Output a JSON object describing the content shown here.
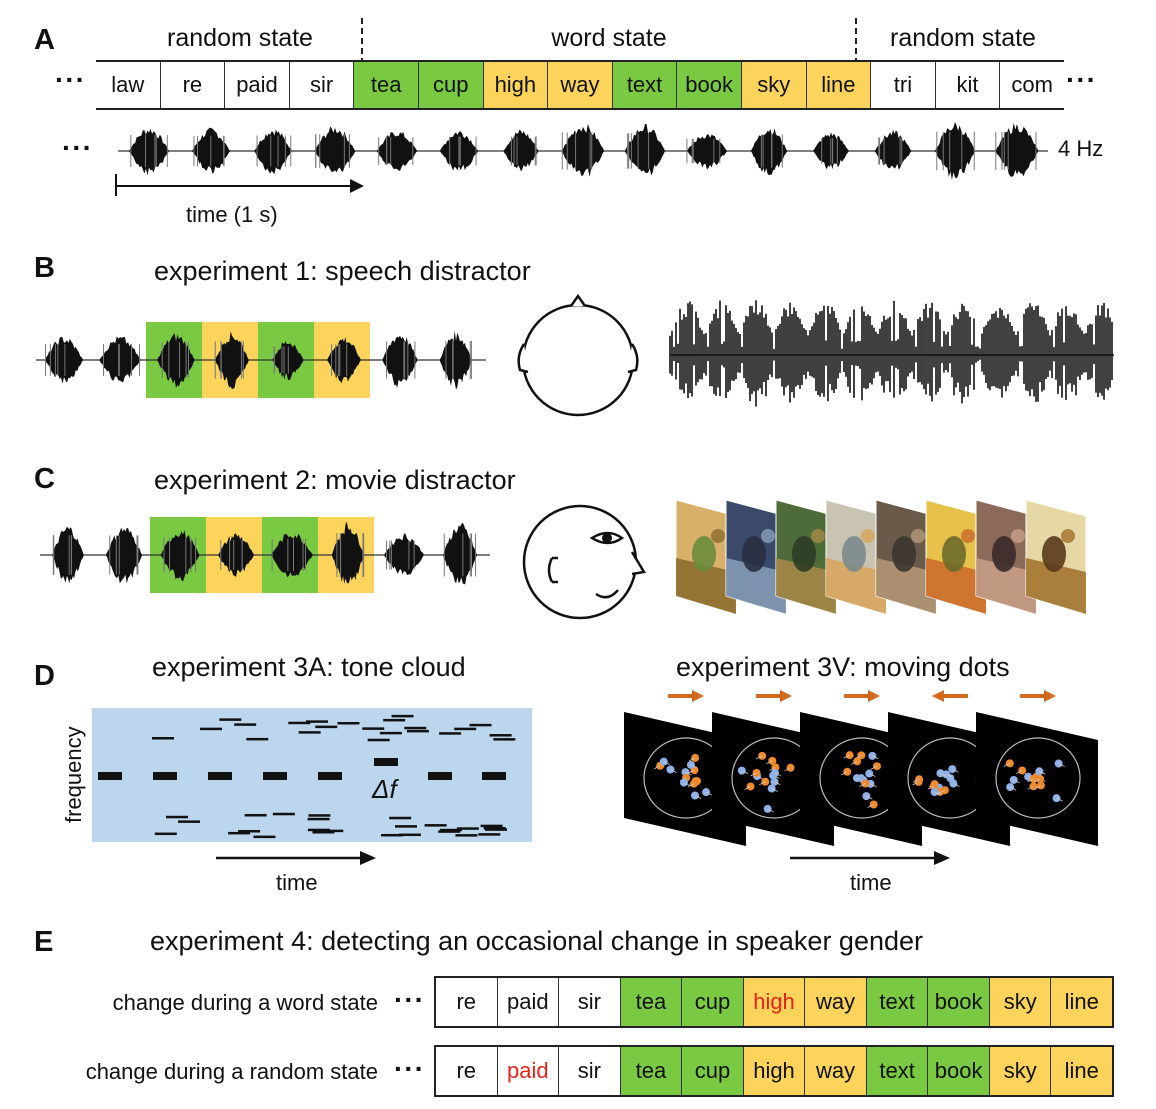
{
  "panels": {
    "A": {
      "letter": "A",
      "state_labels": [
        "random state",
        "word state",
        "random state"
      ],
      "words": [
        {
          "text": "law",
          "state": "random"
        },
        {
          "text": "re",
          "state": "random"
        },
        {
          "text": "paid",
          "state": "random"
        },
        {
          "text": "sir",
          "state": "random"
        },
        {
          "text": "tea",
          "state": "green"
        },
        {
          "text": "cup",
          "state": "green"
        },
        {
          "text": "high",
          "state": "yellow"
        },
        {
          "text": "way",
          "state": "yellow"
        },
        {
          "text": "text",
          "state": "green"
        },
        {
          "text": "book",
          "state": "green"
        },
        {
          "text": "sky",
          "state": "yellow"
        },
        {
          "text": "line",
          "state": "yellow"
        },
        {
          "text": "tri",
          "state": "random"
        },
        {
          "text": "kit",
          "state": "random"
        },
        {
          "text": "com",
          "state": "random"
        }
      ],
      "ellipsis": "···",
      "rate_label": "4 Hz",
      "time_label": "time (1 s)"
    },
    "B": {
      "letter": "B",
      "title": "experiment 1: speech distractor"
    },
    "C": {
      "letter": "C",
      "title": "experiment 2: movie distractor"
    },
    "D": {
      "letter": "D",
      "title_left": "experiment 3A: tone cloud",
      "title_right": "experiment 3V: moving dots",
      "ylabel": "frequency",
      "delta_label": "Δf",
      "xlabel_left": "time",
      "xlabel_right": "time",
      "dot_directions": [
        "right",
        "right",
        "right",
        "left",
        "right"
      ]
    },
    "E": {
      "letter": "E",
      "title": "experiment 4: detecting an occasional change in speaker gender",
      "rows": [
        {
          "label": "change during a word state",
          "words": [
            {
              "text": "re",
              "state": "random"
            },
            {
              "text": "paid",
              "state": "random"
            },
            {
              "text": "sir",
              "state": "random"
            },
            {
              "text": "tea",
              "state": "green"
            },
            {
              "text": "cup",
              "state": "green"
            },
            {
              "text": "high",
              "state": "yellow",
              "highlight": true
            },
            {
              "text": "way",
              "state": "yellow"
            },
            {
              "text": "text",
              "state": "green"
            },
            {
              "text": "book",
              "state": "green"
            },
            {
              "text": "sky",
              "state": "yellow"
            },
            {
              "text": "line",
              "state": "yellow"
            }
          ]
        },
        {
          "label": "change during a random state",
          "words": [
            {
              "text": "re",
              "state": "random"
            },
            {
              "text": "paid",
              "state": "random",
              "highlight": true
            },
            {
              "text": "sir",
              "state": "random"
            },
            {
              "text": "tea",
              "state": "green"
            },
            {
              "text": "cup",
              "state": "green"
            },
            {
              "text": "high",
              "state": "yellow"
            },
            {
              "text": "way",
              "state": "yellow"
            },
            {
              "text": "text",
              "state": "green"
            },
            {
              "text": "book",
              "state": "green"
            },
            {
              "text": "sky",
              "state": "yellow"
            },
            {
              "text": "line",
              "state": "yellow"
            }
          ]
        }
      ]
    }
  },
  "colors": {
    "word_green": "#7ac943",
    "word_yellow": "#fcd45b",
    "highlight_red": "#e8231c",
    "tone_cloud_bg": "#bcd6ee",
    "dot_orange": "#f08a2c",
    "dot_blue": "#8fb1e8",
    "arrow_orange": "#d2691e"
  }
}
